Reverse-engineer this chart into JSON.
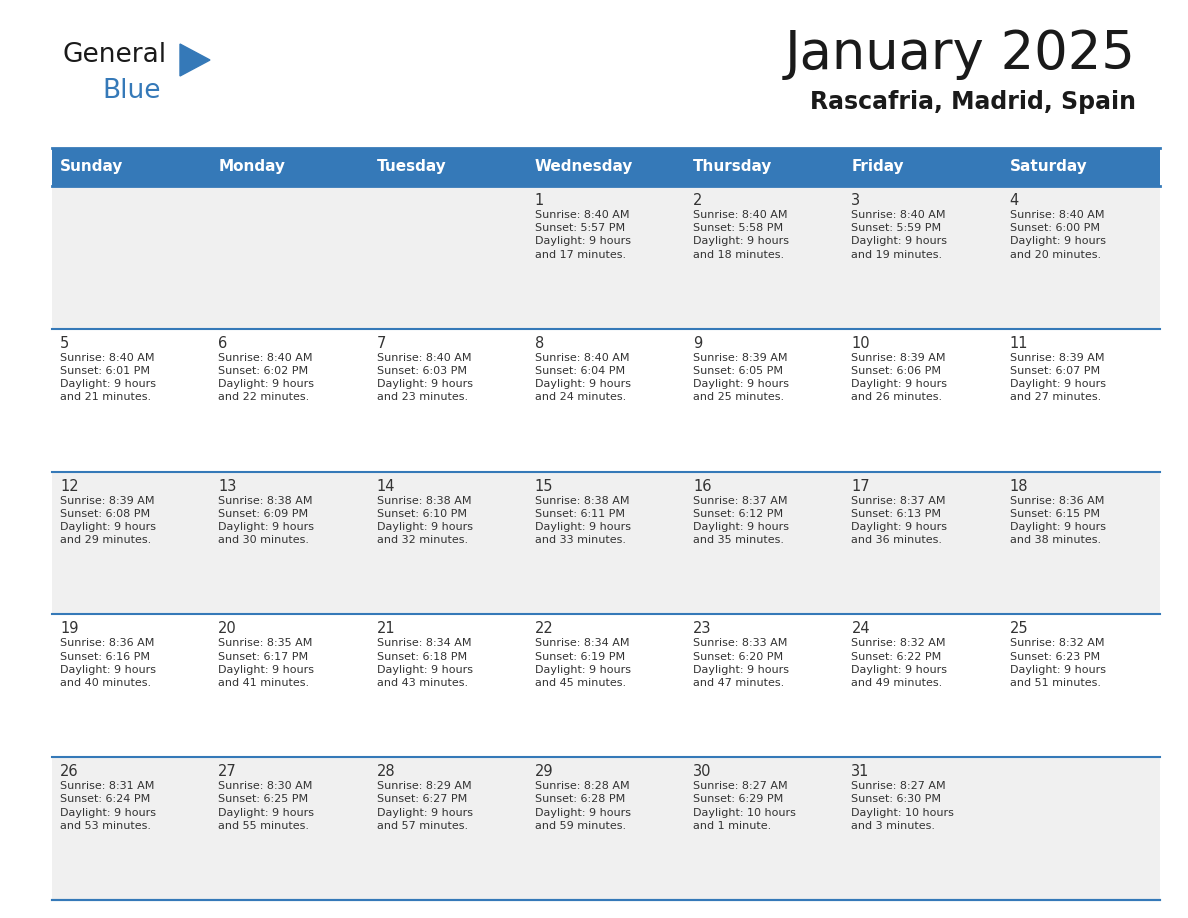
{
  "title": "January 2025",
  "subtitle": "Rascafria, Madrid, Spain",
  "days_of_week": [
    "Sunday",
    "Monday",
    "Tuesday",
    "Wednesday",
    "Thursday",
    "Friday",
    "Saturday"
  ],
  "header_bg": "#3579b8",
  "header_text": "#ffffff",
  "cell_bg_light": "#f0f0f0",
  "cell_bg_white": "#ffffff",
  "cell_text": "#333333",
  "day_num_color": "#333333",
  "title_color": "#1a1a1a",
  "subtitle_color": "#1a1a1a",
  "grid_color": "#3579b8",
  "logo_general_color": "#1a1a1a",
  "logo_blue_color": "#3579b8",
  "logo_triangle_color": "#3579b8",
  "weeks": [
    [
      {
        "day": null,
        "info": null
      },
      {
        "day": null,
        "info": null
      },
      {
        "day": null,
        "info": null
      },
      {
        "day": 1,
        "info": "Sunrise: 8:40 AM\nSunset: 5:57 PM\nDaylight: 9 hours\nand 17 minutes."
      },
      {
        "day": 2,
        "info": "Sunrise: 8:40 AM\nSunset: 5:58 PM\nDaylight: 9 hours\nand 18 minutes."
      },
      {
        "day": 3,
        "info": "Sunrise: 8:40 AM\nSunset: 5:59 PM\nDaylight: 9 hours\nand 19 minutes."
      },
      {
        "day": 4,
        "info": "Sunrise: 8:40 AM\nSunset: 6:00 PM\nDaylight: 9 hours\nand 20 minutes."
      }
    ],
    [
      {
        "day": 5,
        "info": "Sunrise: 8:40 AM\nSunset: 6:01 PM\nDaylight: 9 hours\nand 21 minutes."
      },
      {
        "day": 6,
        "info": "Sunrise: 8:40 AM\nSunset: 6:02 PM\nDaylight: 9 hours\nand 22 minutes."
      },
      {
        "day": 7,
        "info": "Sunrise: 8:40 AM\nSunset: 6:03 PM\nDaylight: 9 hours\nand 23 minutes."
      },
      {
        "day": 8,
        "info": "Sunrise: 8:40 AM\nSunset: 6:04 PM\nDaylight: 9 hours\nand 24 minutes."
      },
      {
        "day": 9,
        "info": "Sunrise: 8:39 AM\nSunset: 6:05 PM\nDaylight: 9 hours\nand 25 minutes."
      },
      {
        "day": 10,
        "info": "Sunrise: 8:39 AM\nSunset: 6:06 PM\nDaylight: 9 hours\nand 26 minutes."
      },
      {
        "day": 11,
        "info": "Sunrise: 8:39 AM\nSunset: 6:07 PM\nDaylight: 9 hours\nand 27 minutes."
      }
    ],
    [
      {
        "day": 12,
        "info": "Sunrise: 8:39 AM\nSunset: 6:08 PM\nDaylight: 9 hours\nand 29 minutes."
      },
      {
        "day": 13,
        "info": "Sunrise: 8:38 AM\nSunset: 6:09 PM\nDaylight: 9 hours\nand 30 minutes."
      },
      {
        "day": 14,
        "info": "Sunrise: 8:38 AM\nSunset: 6:10 PM\nDaylight: 9 hours\nand 32 minutes."
      },
      {
        "day": 15,
        "info": "Sunrise: 8:38 AM\nSunset: 6:11 PM\nDaylight: 9 hours\nand 33 minutes."
      },
      {
        "day": 16,
        "info": "Sunrise: 8:37 AM\nSunset: 6:12 PM\nDaylight: 9 hours\nand 35 minutes."
      },
      {
        "day": 17,
        "info": "Sunrise: 8:37 AM\nSunset: 6:13 PM\nDaylight: 9 hours\nand 36 minutes."
      },
      {
        "day": 18,
        "info": "Sunrise: 8:36 AM\nSunset: 6:15 PM\nDaylight: 9 hours\nand 38 minutes."
      }
    ],
    [
      {
        "day": 19,
        "info": "Sunrise: 8:36 AM\nSunset: 6:16 PM\nDaylight: 9 hours\nand 40 minutes."
      },
      {
        "day": 20,
        "info": "Sunrise: 8:35 AM\nSunset: 6:17 PM\nDaylight: 9 hours\nand 41 minutes."
      },
      {
        "day": 21,
        "info": "Sunrise: 8:34 AM\nSunset: 6:18 PM\nDaylight: 9 hours\nand 43 minutes."
      },
      {
        "day": 22,
        "info": "Sunrise: 8:34 AM\nSunset: 6:19 PM\nDaylight: 9 hours\nand 45 minutes."
      },
      {
        "day": 23,
        "info": "Sunrise: 8:33 AM\nSunset: 6:20 PM\nDaylight: 9 hours\nand 47 minutes."
      },
      {
        "day": 24,
        "info": "Sunrise: 8:32 AM\nSunset: 6:22 PM\nDaylight: 9 hours\nand 49 minutes."
      },
      {
        "day": 25,
        "info": "Sunrise: 8:32 AM\nSunset: 6:23 PM\nDaylight: 9 hours\nand 51 minutes."
      }
    ],
    [
      {
        "day": 26,
        "info": "Sunrise: 8:31 AM\nSunset: 6:24 PM\nDaylight: 9 hours\nand 53 minutes."
      },
      {
        "day": 27,
        "info": "Sunrise: 8:30 AM\nSunset: 6:25 PM\nDaylight: 9 hours\nand 55 minutes."
      },
      {
        "day": 28,
        "info": "Sunrise: 8:29 AM\nSunset: 6:27 PM\nDaylight: 9 hours\nand 57 minutes."
      },
      {
        "day": 29,
        "info": "Sunrise: 8:28 AM\nSunset: 6:28 PM\nDaylight: 9 hours\nand 59 minutes."
      },
      {
        "day": 30,
        "info": "Sunrise: 8:27 AM\nSunset: 6:29 PM\nDaylight: 10 hours\nand 1 minute."
      },
      {
        "day": 31,
        "info": "Sunrise: 8:27 AM\nSunset: 6:30 PM\nDaylight: 10 hours\nand 3 minutes."
      },
      {
        "day": null,
        "info": null
      }
    ]
  ]
}
